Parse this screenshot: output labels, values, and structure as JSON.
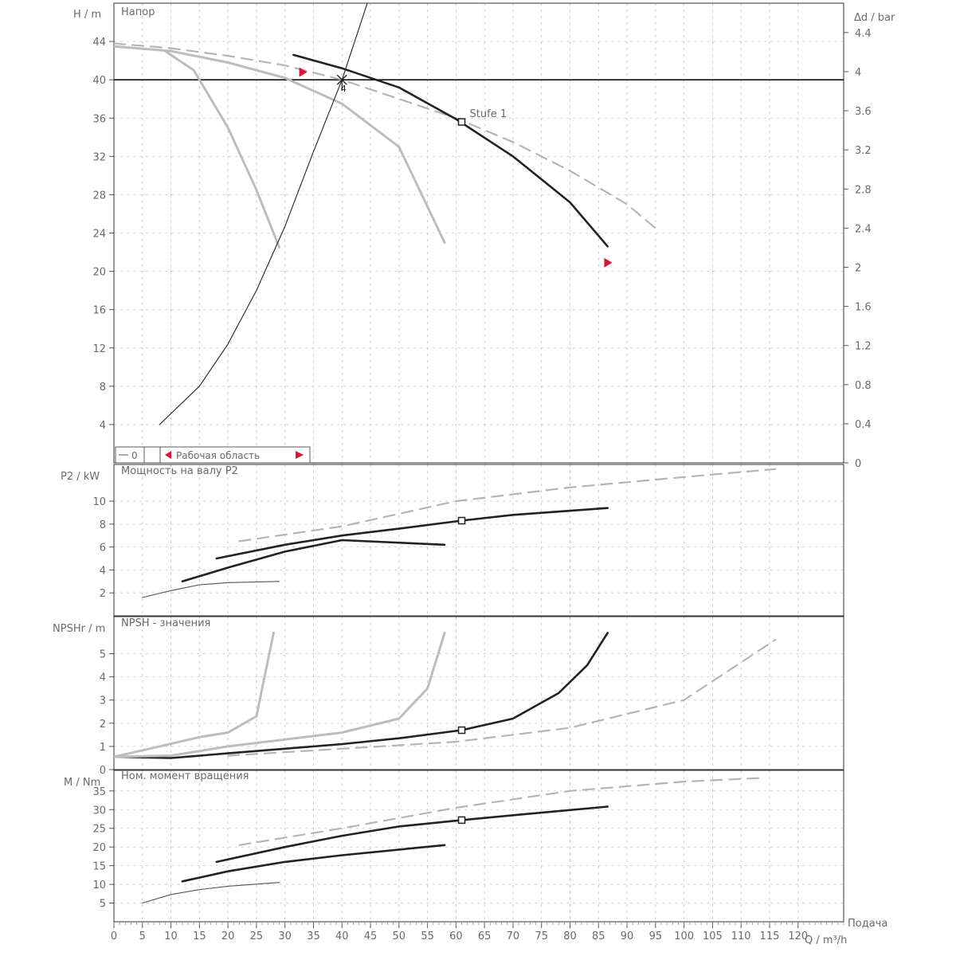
{
  "chart_data": [
    {
      "type": "line",
      "title": "Напор",
      "ylabel": "H / m",
      "y2label": "Δd / bar",
      "ylim": [
        0,
        48
      ],
      "y2lim": [
        0,
        4.7
      ],
      "yticks": [
        4,
        8,
        12,
        16,
        20,
        24,
        28,
        32,
        36,
        40,
        44
      ],
      "ytick_labels": [
        "4",
        "8",
        "12",
        "16",
        "20",
        "24",
        "28",
        "32",
        "36",
        "40",
        "44"
      ],
      "y2ticks": [
        0,
        0.4,
        0.8,
        1.2,
        1.6,
        2,
        2.4,
        2.8,
        3.2,
        3.6,
        4,
        4.4
      ],
      "y2tick_labels": [
        "0",
        "0.4",
        "0.8",
        "1.2",
        "1.6",
        "2",
        "2.4",
        "2.8",
        "3.2",
        "3.6",
        "4",
        "4.4"
      ],
      "grid": true,
      "hline": 40,
      "annotation_op": "4",
      "annotation_curve": "Stufe 1",
      "legend_left": "0",
      "legend_right": "Рабочая область",
      "series": [
        {
          "style": "dashed-gray",
          "points": [
            [
              0,
              43.8
            ],
            [
              10,
              43.3
            ],
            [
              20,
              42.5
            ],
            [
              30,
              41.5
            ],
            [
              40,
              40.0
            ],
            [
              50,
              38.0
            ],
            [
              60,
              36.0
            ],
            [
              70,
              33.5
            ],
            [
              80,
              30.5
            ],
            [
              90,
              27.0
            ],
            [
              95,
              24.5
            ]
          ]
        },
        {
          "style": "thick-black",
          "points": [
            [
              31.5,
              42.6
            ],
            [
              40,
              41.2
            ],
            [
              50,
              39.2
            ],
            [
              60,
              35.9
            ],
            [
              70,
              32.0
            ],
            [
              80,
              27.2
            ],
            [
              86.6,
              22.6
            ]
          ]
        },
        {
          "style": "gray",
          "points": [
            [
              0,
              43.5
            ],
            [
              10,
              43.0
            ],
            [
              20,
              41.8
            ],
            [
              30,
              40.2
            ],
            [
              40,
              37.5
            ],
            [
              50,
              33.0
            ],
            [
              58,
              23.0
            ]
          ]
        },
        {
          "style": "gray",
          "points": [
            [
              9,
              43.0
            ],
            [
              14,
              41.0
            ],
            [
              20,
              35.0
            ],
            [
              25,
              28.5
            ],
            [
              29,
              22.5
            ]
          ]
        },
        {
          "style": "thin-black",
          "points": [
            [
              8,
              4.0
            ],
            [
              15,
              8.0
            ],
            [
              20,
              12.4
            ],
            [
              25,
              18.0
            ],
            [
              30,
              24.7
            ],
            [
              35,
              32.5
            ],
            [
              40,
              40.0
            ],
            [
              45,
              49.0
            ]
          ]
        }
      ],
      "markers": [
        {
          "type": "operating-point",
          "x": 40,
          "y": 40
        },
        {
          "type": "square",
          "x": 61,
          "y": 35.6
        },
        {
          "type": "red-flag",
          "x": 32.5,
          "y": 40.8
        },
        {
          "type": "red-flag",
          "x": 86,
          "y": 20.9
        }
      ]
    },
    {
      "type": "line",
      "title": "Мощность на валу P2",
      "ylabel": "P2 / kW",
      "ylim": [
        0,
        13.2
      ],
      "yticks": [
        2,
        4,
        6,
        8,
        10
      ],
      "ytick_labels": [
        "2",
        "4",
        "6",
        "8",
        "10"
      ],
      "grid": true,
      "series": [
        {
          "style": "dashed-gray",
          "points": [
            [
              22,
              6.5
            ],
            [
              40,
              7.8
            ],
            [
              60,
              10.0
            ],
            [
              80,
              11.2
            ],
            [
              100,
              12.1
            ],
            [
              116,
              12.8
            ]
          ]
        },
        {
          "style": "thick-black",
          "points": [
            [
              18,
              5.0
            ],
            [
              30,
              6.2
            ],
            [
              40,
              7.0
            ],
            [
              50,
              7.6
            ],
            [
              61,
              8.3
            ],
            [
              70,
              8.8
            ],
            [
              86.6,
              9.4
            ]
          ]
        },
        {
          "style": "thick-black",
          "points": [
            [
              12,
              3.0
            ],
            [
              20,
              4.2
            ],
            [
              30,
              5.6
            ],
            [
              40,
              6.6
            ],
            [
              58,
              6.2
            ]
          ]
        },
        {
          "style": "thin-gray",
          "points": [
            [
              5,
              1.6
            ],
            [
              10,
              2.2
            ],
            [
              15,
              2.7
            ],
            [
              20,
              2.9
            ],
            [
              29,
              3.0
            ]
          ]
        }
      ],
      "markers": [
        {
          "type": "square",
          "x": 61,
          "y": 8.3
        }
      ]
    },
    {
      "type": "line",
      "title": "NPSH - значения",
      "ylabel": "NPSHr / m",
      "ylim": [
        0,
        6.6
      ],
      "yticks": [
        0,
        1,
        2,
        3,
        4,
        5
      ],
      "ytick_labels": [
        "0",
        "1",
        "2",
        "3",
        "4",
        "5"
      ],
      "grid": true,
      "series": [
        {
          "style": "thick-black",
          "points": [
            [
              0,
              0.55
            ],
            [
              10,
              0.5
            ],
            [
              20,
              0.7
            ],
            [
              30,
              0.9
            ],
            [
              40,
              1.1
            ],
            [
              50,
              1.35
            ],
            [
              61,
              1.7
            ],
            [
              70,
              2.2
            ],
            [
              78,
              3.3
            ],
            [
              83,
              4.5
            ],
            [
              86.6,
              5.9
            ]
          ]
        },
        {
          "style": "gray",
          "points": [
            [
              0,
              0.55
            ],
            [
              10,
              0.6
            ],
            [
              20,
              1.0
            ],
            [
              30,
              1.3
            ],
            [
              40,
              1.6
            ],
            [
              50,
              2.2
            ],
            [
              55,
              3.5
            ],
            [
              58,
              5.9
            ]
          ]
        },
        {
          "style": "gray",
          "points": [
            [
              0,
              0.55
            ],
            [
              8,
              1.0
            ],
            [
              15,
              1.4
            ],
            [
              20,
              1.6
            ],
            [
              25,
              2.3
            ],
            [
              28,
              5.9
            ]
          ]
        },
        {
          "style": "dashed-gray",
          "points": [
            [
              20,
              0.6
            ],
            [
              40,
              0.9
            ],
            [
              60,
              1.2
            ],
            [
              80,
              1.8
            ],
            [
              100,
              3.0
            ],
            [
              116,
              5.6
            ]
          ]
        }
      ],
      "markers": [
        {
          "type": "square",
          "x": 61,
          "y": 1.7
        }
      ]
    },
    {
      "type": "line",
      "title": "Ном. момент вращения",
      "ylabel": "M / Nm",
      "ylim": [
        0,
        40.5
      ],
      "yticks": [
        5,
        10,
        15,
        20,
        25,
        30,
        35
      ],
      "ytick_labels": [
        "5",
        "10",
        "15",
        "20",
        "25",
        "30",
        "35"
      ],
      "xlabel": "Q / m³/h",
      "xlim": [
        0,
        128
      ],
      "xticks": [
        0,
        5,
        10,
        15,
        20,
        25,
        30,
        35,
        40,
        45,
        50,
        55,
        60,
        65,
        70,
        75,
        80,
        85,
        90,
        95,
        100,
        105,
        110,
        115,
        120
      ],
      "xtick_labels": [
        "0",
        "5",
        "10",
        "15",
        "20",
        "25",
        "30",
        "35",
        "40",
        "45",
        "50",
        "55",
        "60",
        "65",
        "70",
        "75",
        "80",
        "85",
        "90",
        "95",
        "100",
        "105",
        "110",
        "115",
        "120"
      ],
      "xunit_label": "Q / m³/h",
      "grid": true,
      "series": [
        {
          "style": "dashed-gray",
          "points": [
            [
              22,
              20.5
            ],
            [
              40,
              25.0
            ],
            [
              60,
              30.5
            ],
            [
              80,
              35.0
            ],
            [
              100,
              37.5
            ],
            [
              114,
              38.5
            ]
          ]
        },
        {
          "style": "thick-black",
          "points": [
            [
              18,
              16.0
            ],
            [
              30,
              20.0
            ],
            [
              40,
              23.0
            ],
            [
              50,
              25.5
            ],
            [
              61,
              27.2
            ],
            [
              70,
              28.5
            ],
            [
              86.6,
              30.8
            ]
          ]
        },
        {
          "style": "thick-black",
          "points": [
            [
              12,
              10.8
            ],
            [
              20,
              13.5
            ],
            [
              30,
              16.0
            ],
            [
              40,
              17.8
            ],
            [
              58,
              20.5
            ]
          ]
        },
        {
          "style": "thin-gray",
          "points": [
            [
              5,
              5.0
            ],
            [
              10,
              7.3
            ],
            [
              15,
              8.6
            ],
            [
              20,
              9.5
            ],
            [
              29,
              10.5
            ]
          ]
        }
      ],
      "markers": [
        {
          "type": "square",
          "x": 61,
          "y": 27.2
        }
      ]
    }
  ],
  "footer_label": "Подача"
}
